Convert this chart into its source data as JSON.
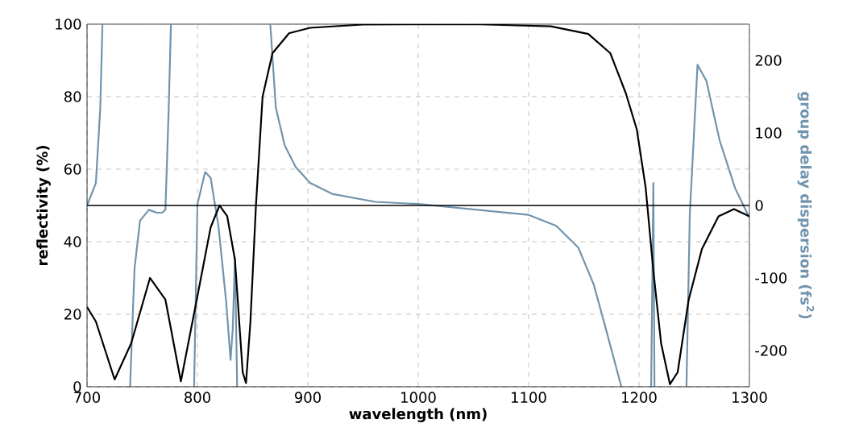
{
  "chart_data": {
    "type": "line",
    "xlabel": "wavelength (nm)",
    "ylabel": "reflectivity (%)",
    "y2label": "group delay dispersion (fs$^{2}$)",
    "xlim": [
      700,
      1300
    ],
    "xticks": [
      700,
      800,
      900,
      1000,
      1100,
      1200,
      1300
    ],
    "ylim": [
      0,
      100
    ],
    "yticks": [
      0,
      20,
      40,
      60,
      80,
      100
    ],
    "y2lim": [
      -250,
      250
    ],
    "y2ticks": [
      -200,
      -100,
      0,
      100,
      200
    ],
    "grid": true,
    "legend": false,
    "marker": "none",
    "line_style": "solid",
    "ref_lines": [
      {
        "axis": "y2",
        "value": 0,
        "color": "#000000"
      }
    ],
    "series": [
      {
        "color": "#000000",
        "x": [
          700,
          708,
          725,
          740,
          757,
          771,
          785,
          800,
          812,
          820,
          827,
          834,
          841,
          844,
          848,
          853,
          859,
          868,
          883,
          902,
          950,
          1050,
          1120,
          1154,
          1174,
          1188,
          1198,
          1206,
          1213,
          1220,
          1228,
          1235,
          1245,
          1257,
          1272,
          1286,
          1300
        ],
        "values": [
          22,
          18,
          2,
          12,
          30,
          24,
          1.5,
          25,
          44,
          50,
          47,
          35,
          4,
          1,
          18,
          50,
          80,
          92,
          97.5,
          99,
          99.9,
          100,
          99.4,
          97.3,
          92,
          81,
          71,
          55,
          32,
          12,
          0.7,
          4,
          24,
          38,
          47,
          49,
          47
        ]
      },
      {
        "color": "#7094ae",
        "axis": "y2",
        "x": [
          700,
          708,
          712,
          714
        ],
        "values": [
          0,
          31,
          135,
          250
        ]
      },
      {
        "color": "#7094ae",
        "axis": "y2",
        "x": [
          739,
          743,
          748,
          756,
          763,
          768,
          771,
          774,
          776
        ],
        "values": [
          -250,
          -87,
          -21,
          -6,
          -10,
          -10,
          -6,
          135,
          250
        ]
      },
      {
        "color": "#7094ae",
        "axis": "y2",
        "x": [
          797,
          800,
          807,
          812,
          819,
          826,
          830,
          832,
          834,
          836
        ],
        "values": [
          -250,
          2,
          46,
          38,
          -28,
          -132,
          -213,
          -170,
          -72,
          -250
        ]
      },
      {
        "color": "#7094ae",
        "axis": "y2",
        "x": [
          866,
          871,
          879,
          889,
          902,
          922,
          961,
          1000,
          1100,
          1125,
          1145,
          1159,
          1171,
          1184
        ],
        "values": [
          250,
          135,
          83,
          53,
          31,
          16,
          5,
          2,
          -13,
          -28,
          -58,
          -109,
          -176,
          -250
        ]
      },
      {
        "color": "#7094ae",
        "axis": "y2",
        "x": [
          1211,
          1213,
          1214
        ],
        "values": [
          -250,
          31,
          -250
        ]
      },
      {
        "color": "#7094ae",
        "axis": "y2",
        "x": [
          1243,
          1246,
          1253,
          1261,
          1273,
          1287,
          1300
        ],
        "values": [
          -250,
          -13,
          194,
          172,
          90,
          24,
          -17
        ]
      }
    ]
  }
}
